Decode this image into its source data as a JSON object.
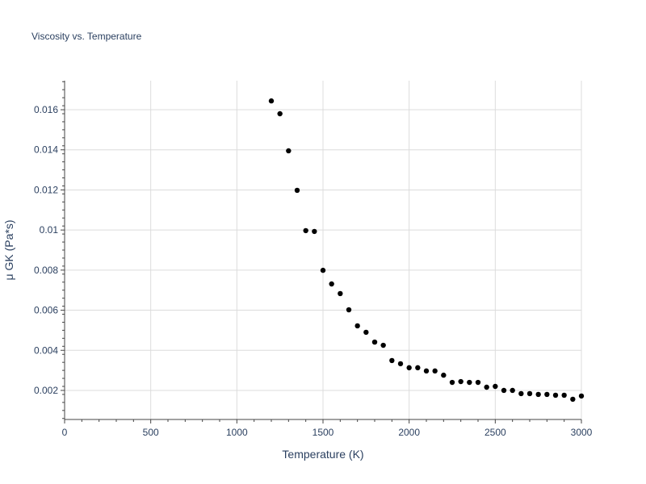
{
  "chart_data": {
    "type": "scatter",
    "title": "Viscosity vs. Temperature",
    "xlabel": "Temperature (K)",
    "ylabel": "μ GK (Pa*s)",
    "xlim": [
      0,
      3000
    ],
    "ylim": [
      0.00055,
      0.01745
    ],
    "xticks": [
      0,
      500,
      1000,
      1500,
      2000,
      2500,
      3000
    ],
    "xtick_labels": [
      "0",
      "500",
      "1000",
      "1500",
      "2000",
      "2500",
      "3000"
    ],
    "yticks": [
      0.002,
      0.004,
      0.006,
      0.008,
      0.01,
      0.012,
      0.014,
      0.016
    ],
    "ytick_labels": [
      "0.002",
      "0.004",
      "0.006",
      "0.008",
      "0.01",
      "0.012",
      "0.014",
      "0.016"
    ],
    "grid": true,
    "marker_color": "#000000",
    "x": [
      1200,
      1250,
      1300,
      1350,
      1400,
      1450,
      1500,
      1550,
      1600,
      1650,
      1700,
      1750,
      1800,
      1850,
      1900,
      1950,
      2000,
      2050,
      2100,
      2150,
      2200,
      2250,
      2300,
      2350,
      2400,
      2450,
      2500,
      2550,
      2600,
      2650,
      2700,
      2750,
      2800,
      2850,
      2900,
      2950,
      3000
    ],
    "y": [
      0.01644,
      0.0158,
      0.01395,
      0.01198,
      0.00997,
      0.00993,
      0.00799,
      0.00731,
      0.00683,
      0.00602,
      0.00522,
      0.0049,
      0.00441,
      0.00425,
      0.00349,
      0.00333,
      0.00313,
      0.00313,
      0.00297,
      0.00297,
      0.00276,
      0.0024,
      0.00244,
      0.0024,
      0.0024,
      0.00216,
      0.0022,
      0.002,
      0.002,
      0.00184,
      0.00184,
      0.0018,
      0.0018,
      0.00176,
      0.00176,
      0.00156,
      0.00172
    ]
  }
}
